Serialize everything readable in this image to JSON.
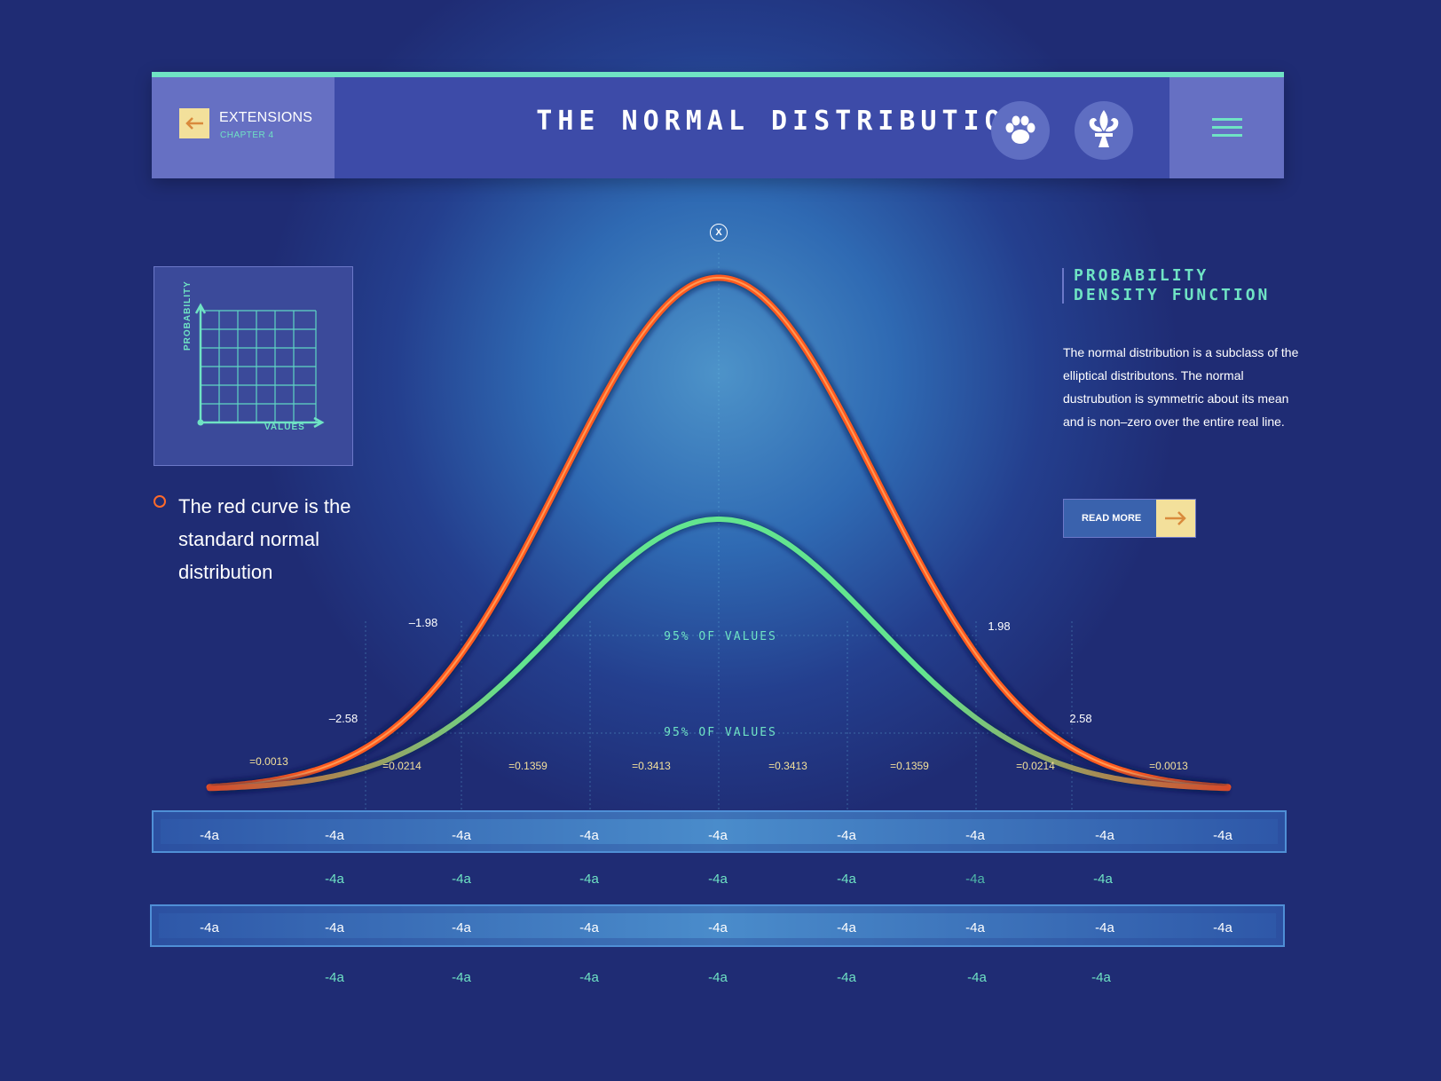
{
  "header": {
    "back_label": "EXTENSIONS",
    "chapter": "CHAPTER  4",
    "title": "THE NORMAL DISTRIBUTION",
    "icons": [
      "paw-icon",
      "fleur-de-lis-icon",
      "hamburger-menu-icon"
    ],
    "accent": "#6fe3c4"
  },
  "close_label": "X",
  "thumbnail": {
    "y_label": "PROBABILITY",
    "x_label": "VALUES"
  },
  "legend": {
    "text": "The red curve is the standard normal distribution",
    "color": "#ff6a2a"
  },
  "side_panel": {
    "title": "PROBABILITY DENSITY FUNCTION",
    "description": "The normal distribution is a subclass of the elliptical distributons. The normal dustrubution is symmetric about its mean and is non–zero over the entire real line.",
    "button_label": "READ MORE"
  },
  "chart_data": {
    "type": "line",
    "series": [
      {
        "color": "#ff5a1f"
      },
      {
        "color": "#63e58f"
      }
    ],
    "threshold_labels": [
      "–1.98",
      "1.98",
      "–2.58",
      "2.58"
    ],
    "band_labels": [
      "95% OF VALUES",
      "95% OF VALUES"
    ],
    "area_labels": [
      "=0.0013",
      "=0.0214",
      "=0.1359",
      "=0.3413",
      "=0.3413",
      "=0.1359",
      "=0.0214",
      "=0.0013"
    ]
  },
  "axis_rows": [
    {
      "style": "band",
      "labels": [
        "-4a",
        "-4a",
        "-4a",
        "-4a",
        "-4a",
        "-4a",
        "-4a",
        "-4a",
        "-4a"
      ]
    },
    {
      "style": "plain",
      "labels": [
        "-4a",
        "-4a",
        "-4a",
        "-4a",
        "-4a",
        "-4a",
        "-4a"
      ]
    },
    {
      "style": "band",
      "labels": [
        "-4a",
        "-4a",
        "-4a",
        "-4a",
        "-4a",
        "-4a",
        "-4a",
        "-4a",
        "-4a"
      ]
    },
    {
      "style": "plain",
      "labels": [
        "-4a",
        "-4a",
        "-4a",
        "-4a",
        "-4a",
        "-4a",
        "-4a"
      ]
    }
  ]
}
